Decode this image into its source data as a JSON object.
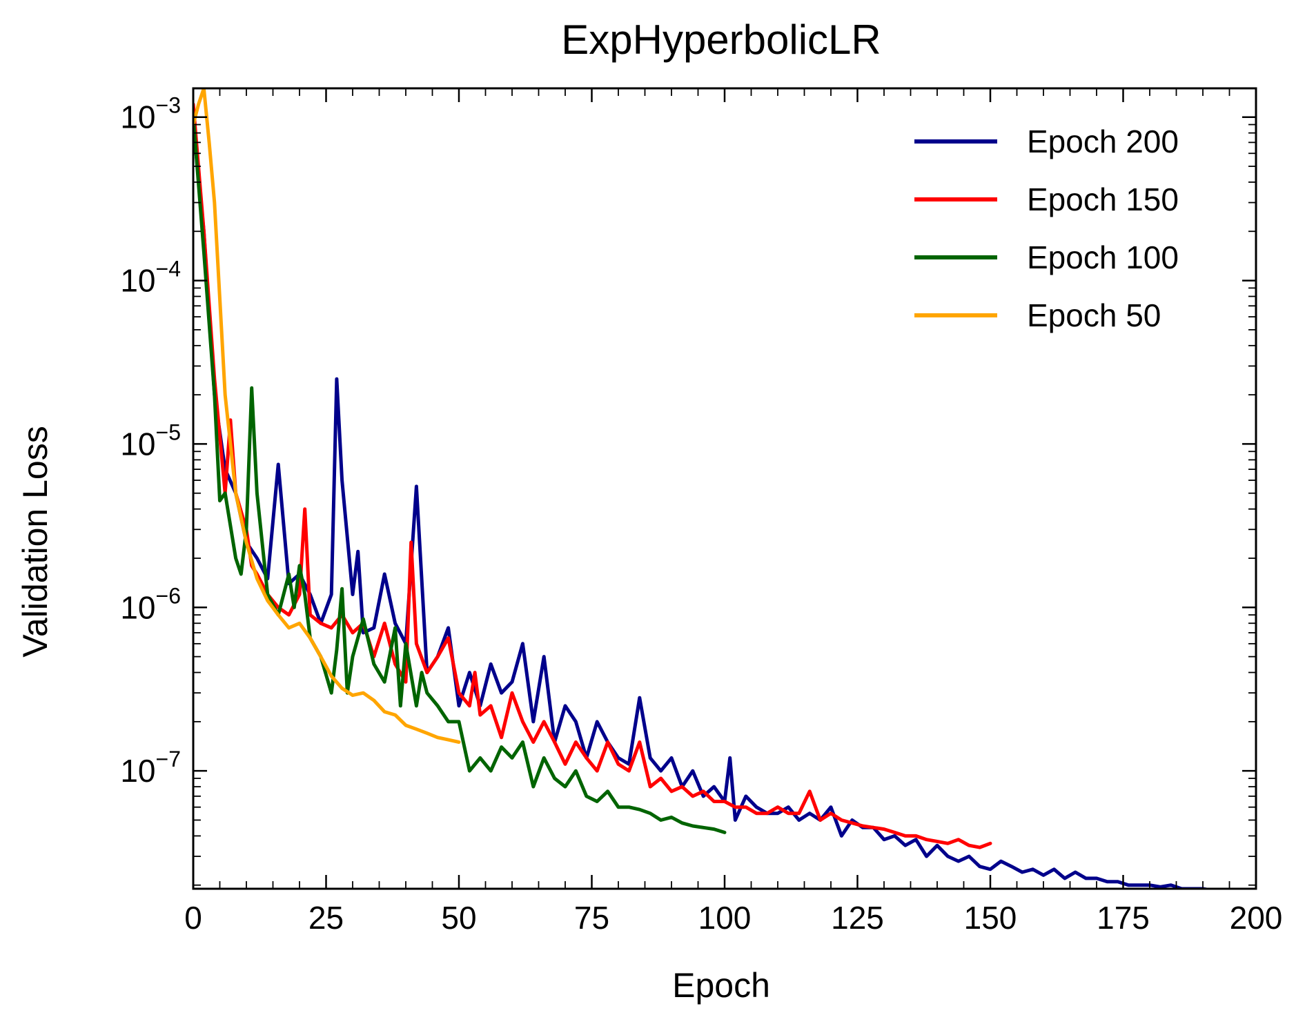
{
  "chart_data": {
    "type": "line",
    "title": "ExpHyperbolicLR",
    "xlabel": "Epoch",
    "ylabel": "Validation Loss",
    "xlim": [
      0,
      200
    ],
    "ylim": [
      1.9e-08,
      0.0015
    ],
    "yscale": "log",
    "xticks": [
      0,
      25,
      50,
      75,
      100,
      125,
      150,
      175,
      200
    ],
    "xtick_labels": [
      "0",
      "25",
      "50",
      "75",
      "100",
      "125",
      "150",
      "175",
      "200"
    ],
    "yticks": [
      1e-07,
      1e-06,
      1e-05,
      0.0001,
      0.001
    ],
    "ytick_labels": [
      {
        "base": "10",
        "exp": "−7"
      },
      {
        "base": "10",
        "exp": "−6"
      },
      {
        "base": "10",
        "exp": "−5"
      },
      {
        "base": "10",
        "exp": "−4"
      },
      {
        "base": "10",
        "exp": "−3"
      }
    ],
    "grid": false,
    "legend_position": "top-right",
    "series": [
      {
        "name": "Epoch 200",
        "color": "#00008b",
        "x": [
          0,
          2,
          4,
          6,
          8,
          10,
          12,
          14,
          16,
          18,
          20,
          22,
          24,
          26,
          27,
          28,
          30,
          31,
          32,
          34,
          36,
          38,
          40,
          42,
          44,
          46,
          48,
          50,
          52,
          54,
          56,
          58,
          60,
          62,
          64,
          66,
          68,
          70,
          72,
          74,
          76,
          78,
          80,
          82,
          84,
          86,
          88,
          90,
          92,
          94,
          96,
          98,
          100,
          101,
          102,
          104,
          106,
          108,
          110,
          112,
          114,
          116,
          118,
          120,
          122,
          124,
          126,
          128,
          130,
          132,
          134,
          136,
          138,
          140,
          142,
          144,
          146,
          148,
          150,
          152,
          154,
          156,
          158,
          160,
          162,
          164,
          166,
          168,
          170,
          172,
          174,
          176,
          178,
          180,
          182,
          184,
          186,
          188,
          190,
          192,
          194,
          196,
          198,
          200
        ],
        "values": [
          0.0009,
          0.0002,
          2e-05,
          7e-06,
          5e-06,
          2.5e-06,
          2e-06,
          1.5e-06,
          7.5e-06,
          1.4e-06,
          1.6e-06,
          1.2e-06,
          8e-07,
          1.2e-06,
          2.5e-05,
          6e-06,
          1.2e-06,
          2.2e-06,
          7e-07,
          7.5e-07,
          1.6e-06,
          8e-07,
          6e-07,
          5.5e-06,
          4e-07,
          5e-07,
          7.5e-07,
          2.5e-07,
          4e-07,
          2.5e-07,
          4.5e-07,
          3e-07,
          3.5e-07,
          6e-07,
          2e-07,
          5e-07,
          1.5e-07,
          2.5e-07,
          2e-07,
          1.2e-07,
          2e-07,
          1.5e-07,
          1.2e-07,
          1.1e-07,
          2.8e-07,
          1.2e-07,
          1e-07,
          1.2e-07,
          8e-08,
          1e-07,
          7e-08,
          8e-08,
          6.5e-08,
          1.2e-07,
          5e-08,
          7e-08,
          6e-08,
          5.5e-08,
          5.5e-08,
          6e-08,
          5e-08,
          5.5e-08,
          5e-08,
          6e-08,
          4e-08,
          5e-08,
          4.5e-08,
          4.5e-08,
          3.8e-08,
          4e-08,
          3.5e-08,
          3.8e-08,
          3e-08,
          3.5e-08,
          3e-08,
          2.8e-08,
          3e-08,
          2.6e-08,
          2.5e-08,
          2.8e-08,
          2.6e-08,
          2.4e-08,
          2.5e-08,
          2.3e-08,
          2.5e-08,
          2.2e-08,
          2.4e-08,
          2.2e-08,
          2.2e-08,
          2.1e-08,
          2.1e-08,
          2e-08,
          2e-08,
          2e-08,
          1.95e-08,
          2e-08,
          1.9e-08,
          1.9e-08,
          1.9e-08,
          1.85e-08,
          1.85e-08,
          1.8e-08,
          1.8e-08,
          1.75e-08
        ]
      },
      {
        "name": "Epoch 150",
        "color": "#ff0000",
        "x": [
          0,
          2,
          4,
          6,
          7,
          8,
          10,
          11,
          12,
          14,
          16,
          18,
          20,
          21,
          22,
          24,
          26,
          28,
          30,
          32,
          34,
          36,
          38,
          40,
          41,
          42,
          44,
          46,
          48,
          50,
          52,
          53,
          54,
          56,
          58,
          60,
          62,
          64,
          66,
          68,
          70,
          72,
          74,
          76,
          78,
          80,
          82,
          84,
          86,
          88,
          90,
          92,
          94,
          96,
          98,
          100,
          102,
          104,
          106,
          108,
          110,
          112,
          114,
          116,
          118,
          120,
          122,
          124,
          126,
          128,
          130,
          132,
          134,
          136,
          138,
          140,
          142,
          144,
          146,
          148,
          150
        ],
        "values": [
          0.0012,
          0.0002,
          2.5e-05,
          5e-06,
          1.4e-05,
          5e-06,
          3e-06,
          1.8e-06,
          1.6e-06,
          1.2e-06,
          1e-06,
          9e-07,
          1.2e-06,
          4e-06,
          9e-07,
          8e-07,
          7.5e-07,
          9e-07,
          7e-07,
          8e-07,
          5e-07,
          8e-07,
          4.5e-07,
          3.5e-07,
          2.5e-06,
          6e-07,
          4e-07,
          5e-07,
          6.5e-07,
          3e-07,
          2.5e-07,
          4e-07,
          2.2e-07,
          2.5e-07,
          1.6e-07,
          3e-07,
          2e-07,
          1.5e-07,
          2e-07,
          1.5e-07,
          1.1e-07,
          1.5e-07,
          1.2e-07,
          1e-07,
          1.5e-07,
          1.1e-07,
          1e-07,
          1.5e-07,
          8e-08,
          9e-08,
          7.5e-08,
          8e-08,
          7e-08,
          7.5e-08,
          6.5e-08,
          6.5e-08,
          6e-08,
          6e-08,
          5.5e-08,
          5.5e-08,
          6e-08,
          5.5e-08,
          5.5e-08,
          7.5e-08,
          5e-08,
          5.5e-08,
          5e-08,
          4.8e-08,
          4.6e-08,
          4.5e-08,
          4.4e-08,
          4.2e-08,
          4e-08,
          4e-08,
          3.8e-08,
          3.7e-08,
          3.6e-08,
          3.8e-08,
          3.5e-08,
          3.4e-08,
          3.6e-08
        ]
      },
      {
        "name": "Epoch 100",
        "color": "#006400",
        "x": [
          0,
          2,
          4,
          5,
          6,
          8,
          9,
          10,
          11,
          12,
          14,
          16,
          18,
          19,
          20,
          21,
          22,
          24,
          26,
          27,
          28,
          29,
          30,
          32,
          34,
          36,
          38,
          39,
          40,
          42,
          43,
          44,
          46,
          48,
          50,
          52,
          54,
          56,
          58,
          60,
          62,
          64,
          66,
          68,
          70,
          72,
          74,
          76,
          78,
          80,
          82,
          84,
          86,
          88,
          90,
          92,
          94,
          96,
          98,
          100
        ],
        "values": [
          0.001,
          0.00015,
          2e-05,
          4.5e-06,
          5e-06,
          2e-06,
          1.6e-06,
          3e-06,
          2.2e-05,
          5e-06,
          1.2e-06,
          9e-07,
          1.6e-06,
          1e-06,
          1.8e-06,
          1.2e-06,
          6.5e-07,
          5e-07,
          3e-07,
          5.5e-07,
          1.3e-06,
          3e-07,
          5e-07,
          8.5e-07,
          4.5e-07,
          3.5e-07,
          7.5e-07,
          2.5e-07,
          6e-07,
          2.5e-07,
          4e-07,
          3e-07,
          2.5e-07,
          2e-07,
          2e-07,
          1e-07,
          1.2e-07,
          1e-07,
          1.4e-07,
          1.2e-07,
          1.5e-07,
          8e-08,
          1.2e-07,
          9e-08,
          8e-08,
          1e-07,
          7e-08,
          6.5e-08,
          7.5e-08,
          6e-08,
          6e-08,
          5.8e-08,
          5.5e-08,
          5e-08,
          5.2e-08,
          4.8e-08,
          4.6e-08,
          4.5e-08,
          4.4e-08,
          4.2e-08
        ]
      },
      {
        "name": "Epoch 50",
        "color": "#ffa500",
        "x": [
          0,
          1,
          2,
          3,
          4,
          6,
          8,
          10,
          12,
          14,
          16,
          18,
          20,
          22,
          24,
          26,
          28,
          30,
          32,
          34,
          36,
          38,
          40,
          42,
          44,
          46,
          48,
          50
        ],
        "values": [
          0.0009,
          0.0012,
          0.0015,
          0.0007,
          0.0003,
          2e-05,
          5e-06,
          2.5e-06,
          1.5e-06,
          1.1e-06,
          9e-07,
          7.5e-07,
          8e-07,
          6.5e-07,
          5e-07,
          3.8e-07,
          3.2e-07,
          2.9e-07,
          3e-07,
          2.7e-07,
          2.3e-07,
          2.2e-07,
          1.9e-07,
          1.8e-07,
          1.7e-07,
          1.6e-07,
          1.55e-07,
          1.5e-07
        ]
      }
    ]
  }
}
